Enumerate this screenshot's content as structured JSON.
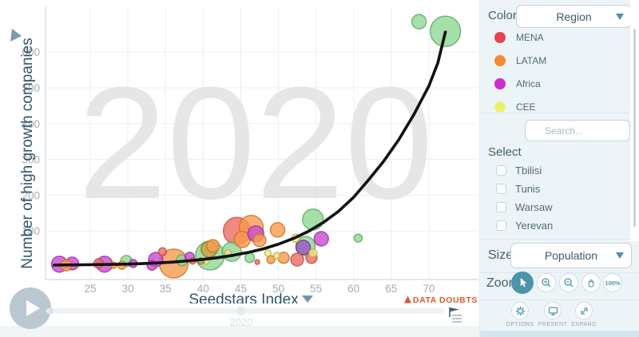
{
  "chart_data": {
    "type": "scatter",
    "watermark": "2020",
    "xlabel": "Seedstars Index",
    "ylabel": "Number of high growth companies",
    "xlim": [
      19.5,
      73.5
    ],
    "ylim": [
      0,
      745
    ],
    "x_ticks": [
      25,
      30,
      35,
      40,
      45,
      50,
      55,
      60,
      65,
      70
    ],
    "y_ticks": [
      100,
      200,
      300,
      400,
      500,
      600
    ],
    "grid": true,
    "legend_position": "right-panel",
    "data_doubts_label": "DATA DOUBTS",
    "series": [
      {
        "name": "MENA",
        "color": "#ed6c62",
        "stroke": "#b9514a",
        "points": [
          [
            26.1,
            9,
            6
          ],
          [
            34.6,
            42,
            5
          ],
          [
            38.6,
            16,
            4
          ],
          [
            44.5,
            100,
            17
          ],
          [
            47.2,
            13,
            3
          ],
          [
            52.5,
            20,
            8
          ],
          [
            54.4,
            25,
            7
          ]
        ]
      },
      {
        "name": "LATAM",
        "color": "#f79b4d",
        "stroke": "#c9721f",
        "points": [
          [
            21.8,
            4,
            7
          ],
          [
            28.1,
            4,
            4
          ],
          [
            29.2,
            4,
            5
          ],
          [
            36.1,
            9,
            18
          ],
          [
            41.3,
            58,
            8
          ],
          [
            45.2,
            76,
            10
          ],
          [
            46.4,
            110,
            15
          ],
          [
            47.5,
            74,
            8
          ],
          [
            49,
            20,
            5
          ],
          [
            50.7,
            25,
            7
          ],
          [
            49.9,
            103,
            9
          ]
        ]
      },
      {
        "name": "Africa",
        "color": "#cb49d3",
        "stroke": "#96339e",
        "points": [
          [
            20.9,
            7,
            10
          ],
          [
            22.6,
            9,
            8
          ],
          [
            26.9,
            7,
            10
          ],
          [
            30.7,
            9,
            5
          ],
          [
            33.2,
            4,
            6
          ],
          [
            33.7,
            20,
            9
          ],
          [
            38.2,
            27,
            6
          ],
          [
            47,
            92,
            10
          ],
          [
            55.7,
            78,
            9
          ]
        ]
      },
      {
        "name": "CEE",
        "color": "#eeea83",
        "stroke": "#bcb14e",
        "points": [
          [
            40.4,
            16,
            4
          ],
          [
            43.3,
            38,
            4
          ],
          [
            48.6,
            38,
            4
          ],
          [
            49.8,
            31,
            4
          ],
          [
            52.3,
            80,
            5
          ],
          [
            54.6,
            38,
            5
          ]
        ]
      },
      {
        "name": "green",
        "color": "#8fd794",
        "stroke": "#5fa763",
        "points": [
          [
            29.8,
            16,
            7
          ],
          [
            37.2,
            18,
            7
          ],
          [
            40.9,
            31,
            18
          ],
          [
            43.8,
            42,
            12
          ],
          [
            46.2,
            25,
            6
          ],
          [
            53.6,
            58,
            12
          ],
          [
            54.6,
            132,
            13
          ],
          [
            60.6,
            80,
            5
          ],
          [
            68.7,
            685,
            9
          ],
          [
            72.2,
            658,
            19
          ]
        ]
      },
      {
        "name": "olive",
        "color": "#c2a544",
        "stroke": "#8c731f",
        "points": [
          [
            39.7,
            16,
            4
          ],
          [
            40.8,
            49,
            10
          ]
        ]
      },
      {
        "name": "purple",
        "color": "#9b53c1",
        "stroke": "#6f3594",
        "points": [
          [
            53.3,
            54,
            9
          ]
        ]
      }
    ],
    "trend_line": {
      "color": "#111111",
      "points": [
        [
          20.2,
          4.5
        ],
        [
          22,
          5
        ],
        [
          24,
          5.5
        ],
        [
          26,
          6
        ],
        [
          28,
          6.5
        ],
        [
          30,
          7.3
        ],
        [
          32,
          8.8
        ],
        [
          34,
          10.7
        ],
        [
          36,
          13
        ],
        [
          38,
          16.5
        ],
        [
          40,
          20.5
        ],
        [
          42,
          25.5
        ],
        [
          44,
          32
        ],
        [
          46,
          40
        ],
        [
          48,
          50
        ],
        [
          50,
          63
        ],
        [
          52,
          79
        ],
        [
          54,
          99
        ],
        [
          56,
          124
        ],
        [
          58,
          155
        ],
        [
          60,
          194
        ],
        [
          62,
          243
        ],
        [
          64,
          295
        ],
        [
          66,
          355
        ],
        [
          68,
          425
        ],
        [
          70,
          505
        ],
        [
          71.2,
          570
        ],
        [
          72.2,
          656
        ]
      ]
    }
  },
  "timeline": {
    "year": "2020"
  },
  "sidebar": {
    "color_section": {
      "label": "Color",
      "dropdown_value": "Region"
    },
    "legend": {
      "items": [
        {
          "label": "MENA",
          "color": "#e8434e"
        },
        {
          "label": "LATAM",
          "color": "#f68a2e"
        },
        {
          "label": "Africa",
          "color": "#cb2fcf"
        },
        {
          "label": "CEE",
          "color": "#ecf06f"
        }
      ]
    },
    "search": {
      "placeholder": "Search..."
    },
    "select_section": {
      "label": "Select",
      "items": [
        "Tbilisi",
        "Tunis",
        "Warsaw",
        "Yerevan"
      ]
    },
    "size_section": {
      "label": "Size",
      "dropdown_value": "Population"
    },
    "zoom_section": {
      "label": "Zoom",
      "reset_label": "100%"
    },
    "footer": {
      "options": "OPTIONS",
      "present": "PRESENT",
      "expand": "EXPAND"
    }
  },
  "colors": {
    "accent": "#4b94aa",
    "axis_text": "#2f566b",
    "tick_text": "#a3adb2",
    "doubts": "#e2572b",
    "watermark": "#e6e6e6",
    "grid": "#e9f0f3",
    "axis_line": "#cfd8dc"
  }
}
